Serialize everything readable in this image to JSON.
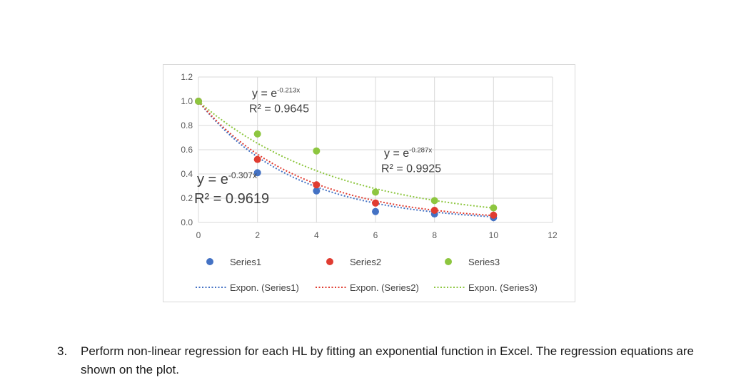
{
  "chart_data": {
    "type": "scatter",
    "xlim": [
      0,
      12
    ],
    "ylim": [
      0,
      1.2
    ],
    "x_ticks": [
      "0",
      "2",
      "4",
      "6",
      "8",
      "10",
      "12"
    ],
    "y_ticks": [
      "0.0",
      "0.2",
      "0.4",
      "0.6",
      "0.8",
      "1.0",
      "1.2"
    ],
    "grid": true,
    "legend_position": "bottom",
    "series": [
      {
        "name": "Series1",
        "color": "#4472c4",
        "x": [
          0,
          2,
          4,
          6,
          8,
          10
        ],
        "y": [
          1.0,
          0.41,
          0.26,
          0.09,
          0.07,
          0.04
        ],
        "trend": {
          "name": "Expon. (Series1)",
          "k": -0.307
        }
      },
      {
        "name": "Series2",
        "color": "#e03c31",
        "x": [
          0,
          2,
          4,
          6,
          8,
          10
        ],
        "y": [
          1.0,
          0.52,
          0.31,
          0.16,
          0.1,
          0.06
        ],
        "trend": {
          "name": "Expon. (Series2)",
          "k": -0.287
        }
      },
      {
        "name": "Series3",
        "color": "#8dc63f",
        "x": [
          0,
          2,
          4,
          6,
          8,
          10
        ],
        "y": [
          1.0,
          0.73,
          0.59,
          0.25,
          0.18,
          0.12
        ],
        "trend": {
          "name": "Expon. (Series3)",
          "k": -0.213
        }
      }
    ],
    "annotations": [
      {
        "base": "y = e",
        "exp": "-0.213x",
        "r2": "R² = 0.9645"
      },
      {
        "base": "y = e",
        "exp": "-0.287x",
        "r2": "R² = 0.9925"
      },
      {
        "base": "y = e",
        "exp": "-0.307x",
        "r2": "R² = 0.9619"
      }
    ]
  },
  "caption": {
    "number": "3.",
    "text": "Perform non-linear regression for each HL by fitting an exponential function in Excel. The regression equations are shown on the plot."
  }
}
